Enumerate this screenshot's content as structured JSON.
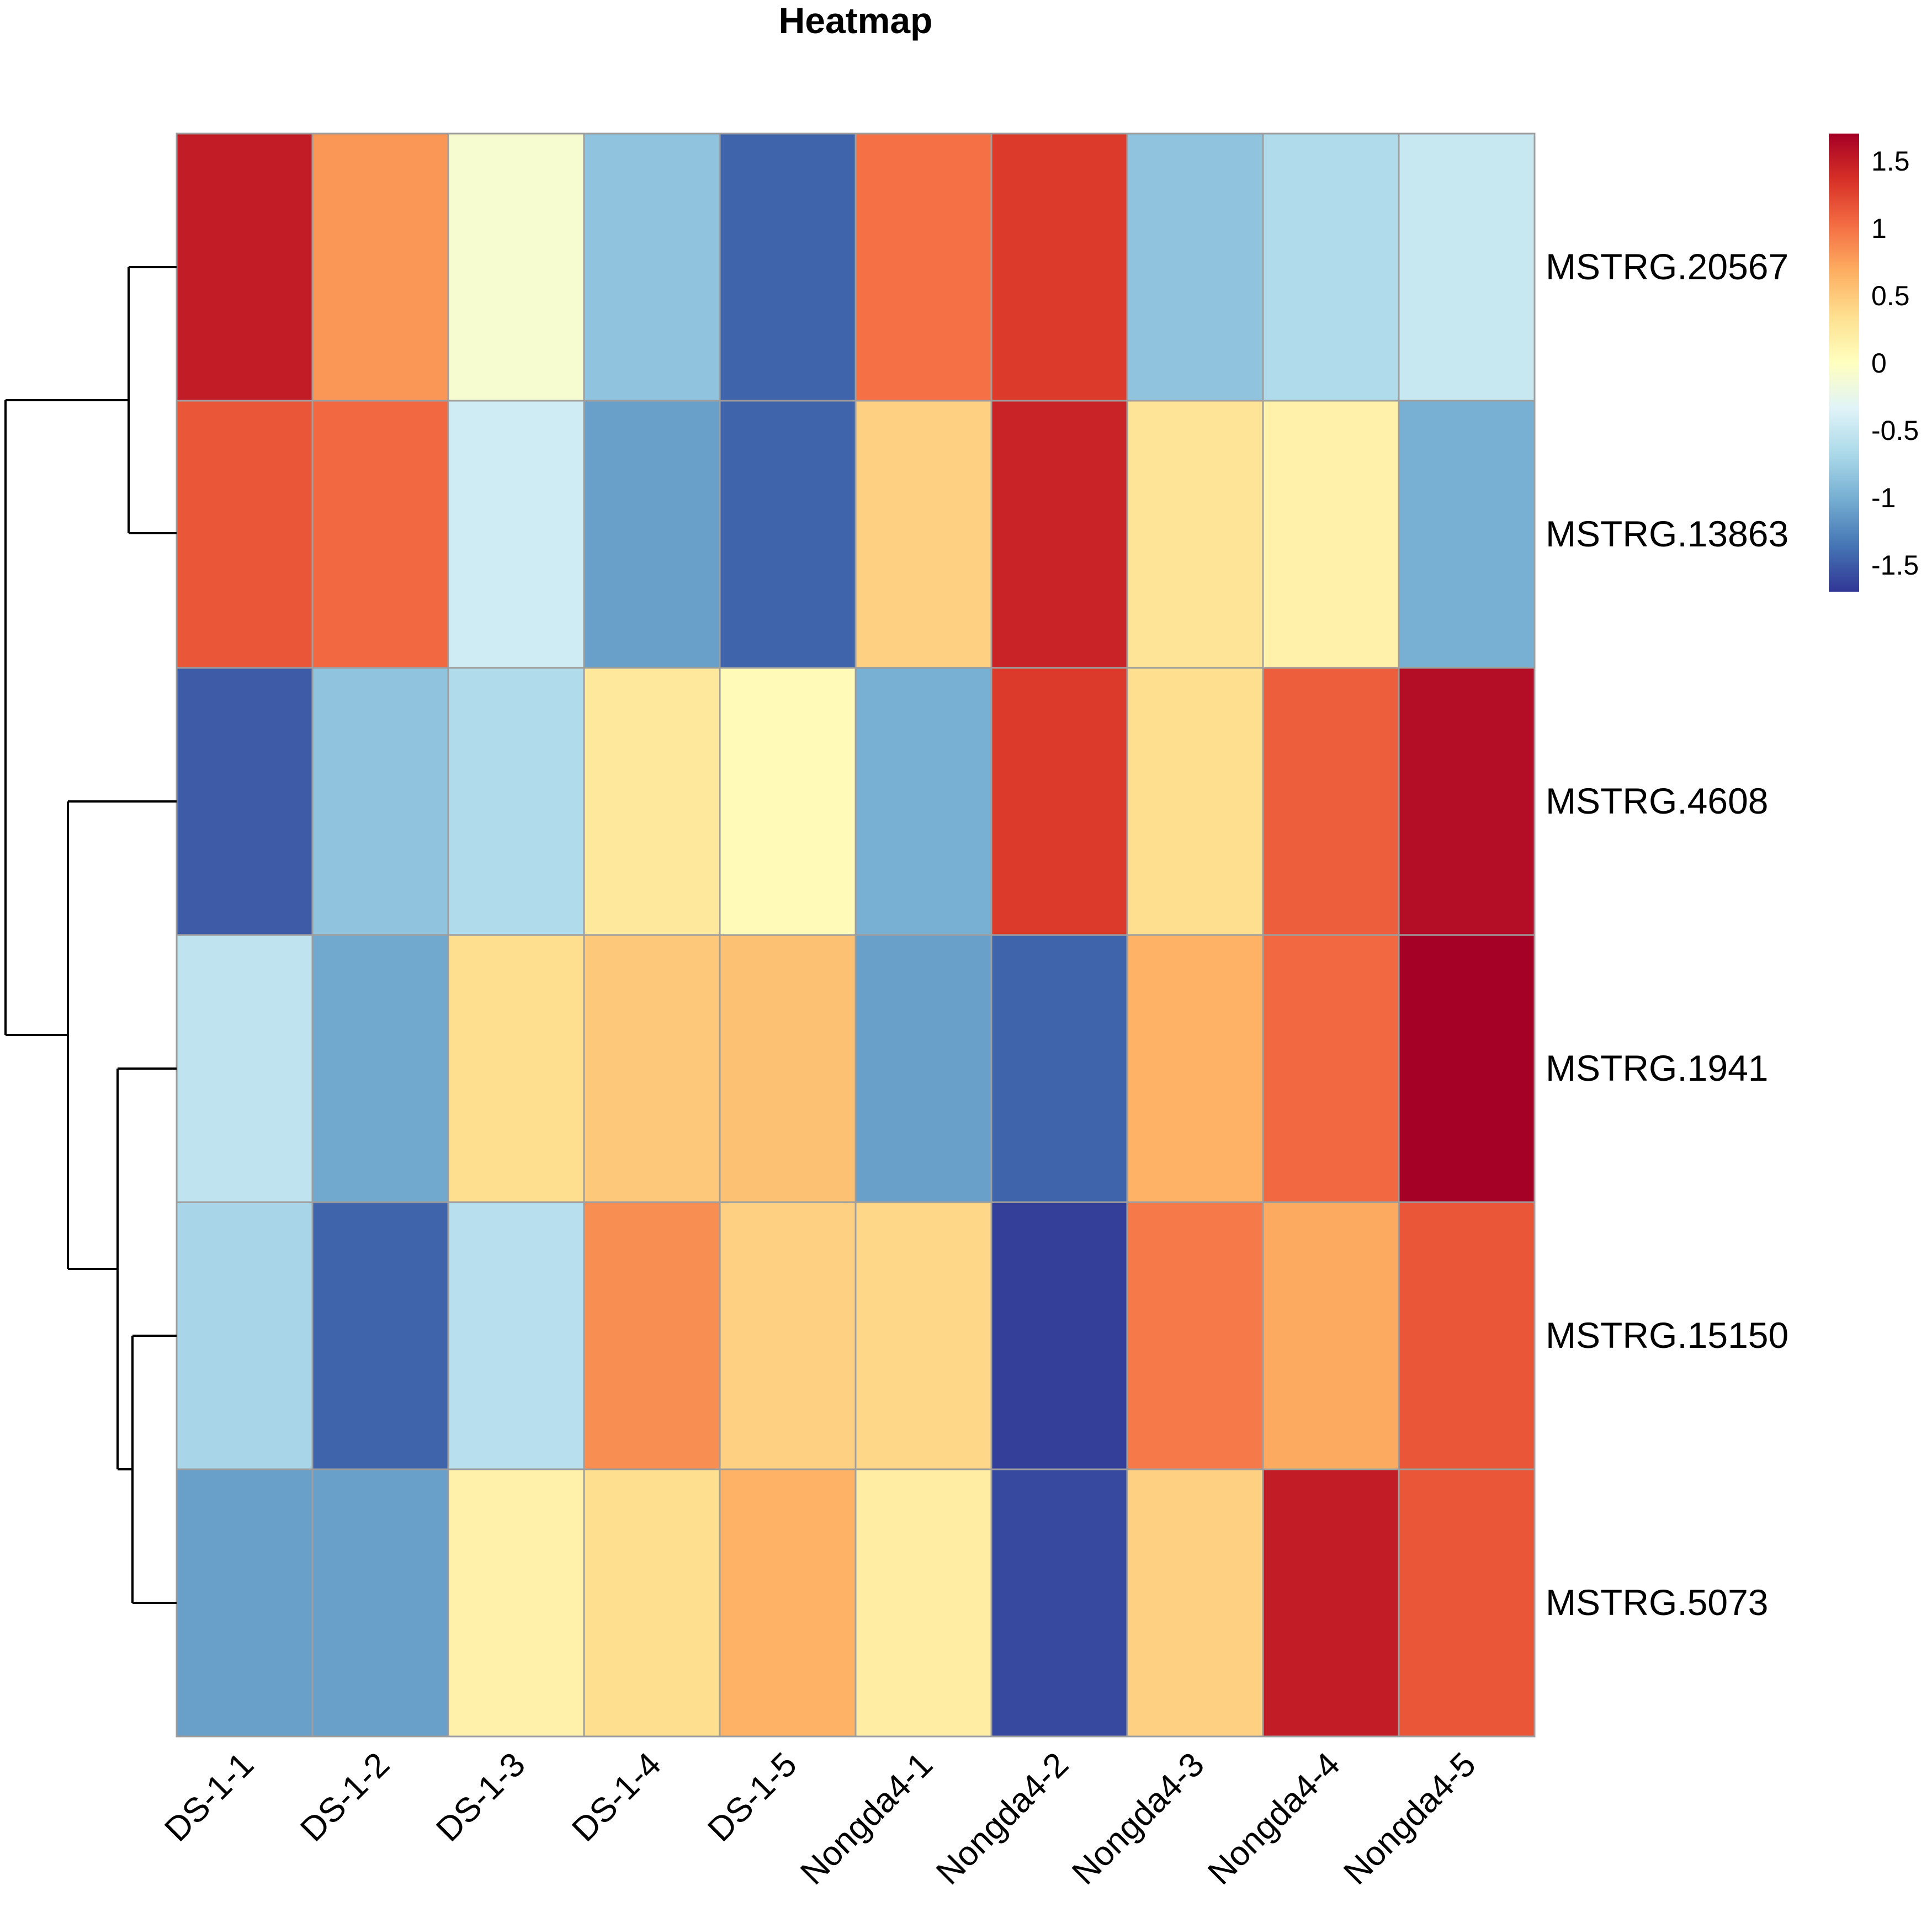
{
  "chart_data": {
    "type": "heatmap",
    "title": "Heatmap",
    "columns": [
      "DS-1-1",
      "DS-1-2",
      "DS-1-3",
      "DS-1-4",
      "DS-1-5",
      "Nongda4-1",
      "Nongda4-2",
      "Nongda4-3",
      "Nongda4-4",
      "Nongda4-5"
    ],
    "rows": [
      "MSTRG.20567",
      "MSTRG.13863",
      "MSTRG.4608",
      "MSTRG.1941",
      "MSTRG.15150",
      "MSTRG.5073"
    ],
    "values": [
      [
        1.5,
        0.8,
        -0.1,
        -0.85,
        -1.45,
        1.0,
        1.3,
        -0.85,
        -0.65,
        -0.5
      ],
      [
        1.15,
        1.05,
        -0.45,
        -1.1,
        -1.45,
        0.45,
        1.45,
        0.3,
        0.15,
        -1.0
      ],
      [
        -1.5,
        -0.85,
        -0.65,
        0.25,
        0.05,
        -1.0,
        1.3,
        0.35,
        1.1,
        1.6
      ],
      [
        -0.55,
        -1.05,
        0.35,
        0.5,
        0.55,
        -1.1,
        -1.45,
        0.65,
        1.05,
        1.7
      ],
      [
        -0.7,
        -1.45,
        -0.6,
        0.85,
        0.45,
        0.4,
        -1.65,
        0.95,
        0.7,
        1.15
      ],
      [
        -1.1,
        -1.1,
        0.15,
        0.35,
        0.65,
        0.2,
        -1.6,
        0.45,
        1.5,
        1.15
      ]
    ],
    "legend": {
      "ticks": [
        "1.5",
        "1",
        "0.5",
        "0",
        "-0.5",
        "-1",
        "-1.5"
      ],
      "tick_values": [
        1.5,
        1,
        0.5,
        0,
        -0.5,
        -1,
        -1.5
      ],
      "range": [
        -1.7,
        1.7
      ],
      "colors": [
        "#313695",
        "#4575b4",
        "#74add1",
        "#abd9e9",
        "#e0f3f8",
        "#ffffbf",
        "#fee090",
        "#fdae61",
        "#f46d43",
        "#d73027",
        "#a50026"
      ]
    },
    "dendrogram": "left, row clustering",
    "grid": true
  }
}
